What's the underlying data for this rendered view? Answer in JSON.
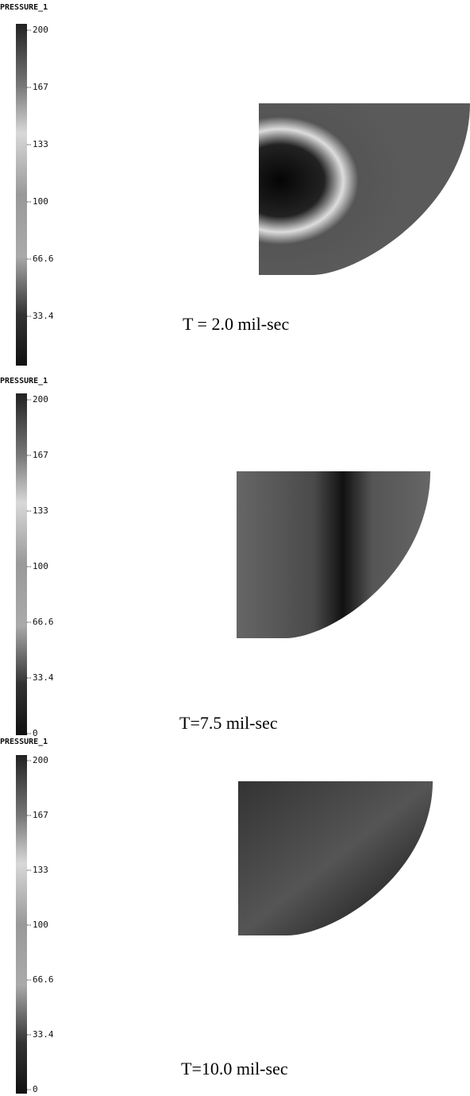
{
  "panels": [
    {
      "label": "PRESSURE_1",
      "ticks": [
        200,
        167,
        133,
        100,
        66.6,
        33.4
      ],
      "caption": "T = 2.0 mil-sec"
    },
    {
      "label": "PRESSURE_1",
      "ticks": [
        200,
        167,
        133,
        100,
        66.6,
        33.4,
        0
      ],
      "caption": "T=7.5 mil-sec"
    },
    {
      "label": "PRESSURE_1",
      "ticks": [
        200,
        167,
        133,
        100,
        66.6,
        33.4,
        0
      ],
      "caption": "T=10.0 mil-sec"
    }
  ]
}
